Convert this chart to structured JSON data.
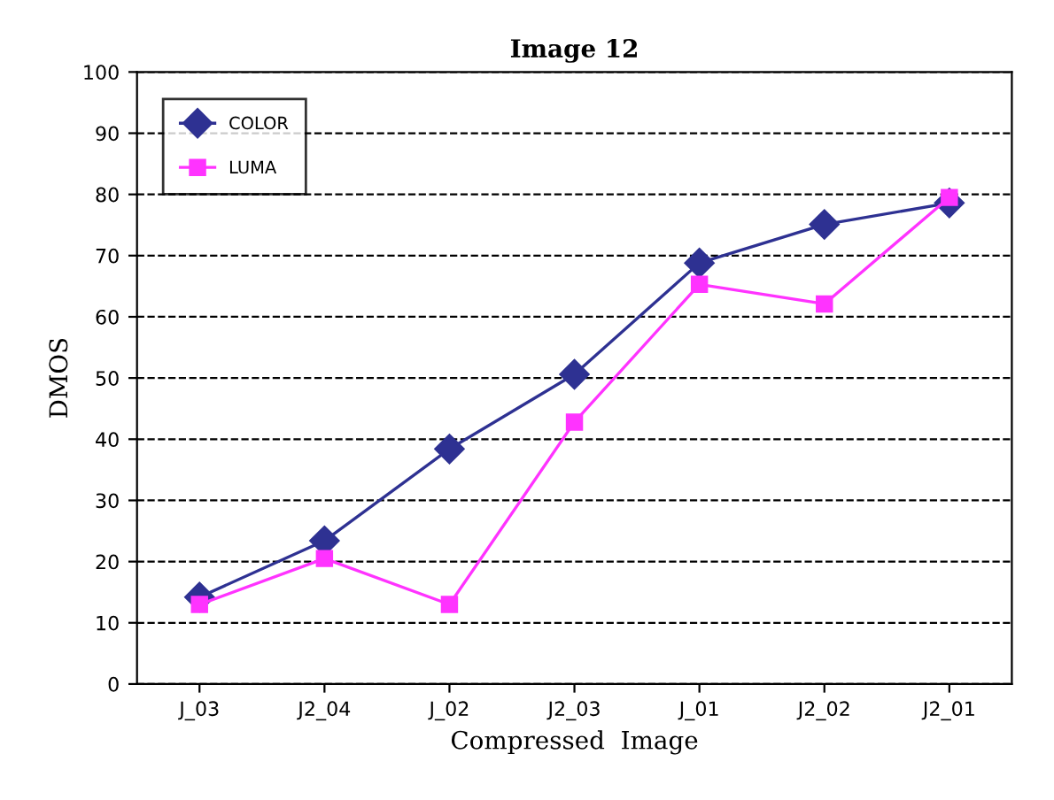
{
  "chart_data": {
    "type": "line",
    "title": "Image 12",
    "xlabel": "Compressed  Image",
    "ylabel": "DMOS",
    "categories": [
      "J_03",
      "J2_04",
      "J_02",
      "J2_03",
      "J_01",
      "J2_02",
      "J2_01"
    ],
    "series": [
      {
        "name": "COLOR",
        "color": "#2e3192",
        "marker": "diamond",
        "values": [
          14.2,
          23.4,
          38.4,
          50.6,
          68.8,
          75.1,
          78.6
        ]
      },
      {
        "name": "LUMA",
        "color": "#ff33ff",
        "marker": "square",
        "values": [
          13,
          20.5,
          13,
          42.8,
          65.3,
          62.1,
          79.5
        ]
      }
    ],
    "ylim": [
      0,
      100
    ],
    "yticks": [
      0,
      10,
      20,
      30,
      40,
      50,
      60,
      70,
      80,
      90,
      100
    ],
    "grid": "y",
    "legend": "top left",
    "line_style": "solid"
  }
}
